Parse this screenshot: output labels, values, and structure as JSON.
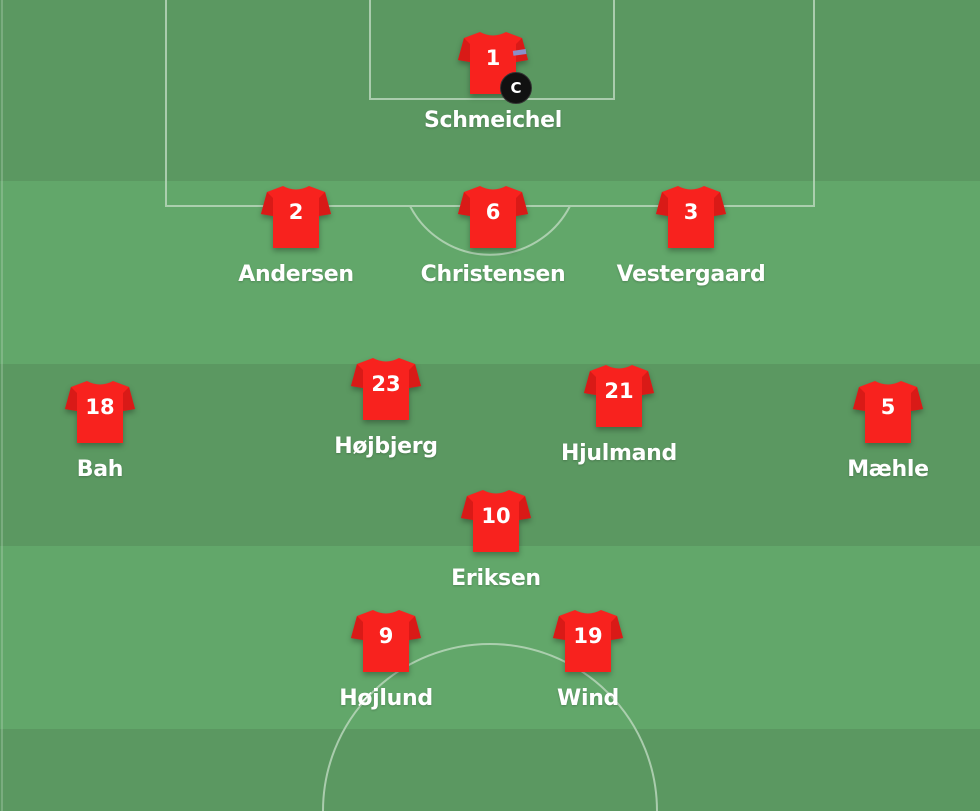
{
  "pitch": {
    "dark_color": "#5b9861",
    "light_color": "#62a76a",
    "line_color": "#b9d6bb",
    "shirt_color": "#f8221e"
  },
  "players": [
    {
      "number": "1",
      "name": "Schmeichel",
      "captain": "C",
      "row": "goalkeeper"
    },
    {
      "number": "2",
      "name": "Andersen",
      "row": "defence"
    },
    {
      "number": "6",
      "name": "Christensen",
      "row": "defence"
    },
    {
      "number": "3",
      "name": "Vestergaard",
      "row": "defence"
    },
    {
      "number": "18",
      "name": "Bah",
      "row": "midfield"
    },
    {
      "number": "23",
      "name": "Højbjerg",
      "row": "midfield"
    },
    {
      "number": "21",
      "name": "Hjulmand",
      "row": "midfield"
    },
    {
      "number": "5",
      "name": "Mæhle",
      "row": "midfield"
    },
    {
      "number": "10",
      "name": "Eriksen",
      "row": "attacking-midfield"
    },
    {
      "number": "9",
      "name": "Højlund",
      "row": "attack"
    },
    {
      "number": "19",
      "name": "Wind",
      "row": "attack"
    }
  ]
}
